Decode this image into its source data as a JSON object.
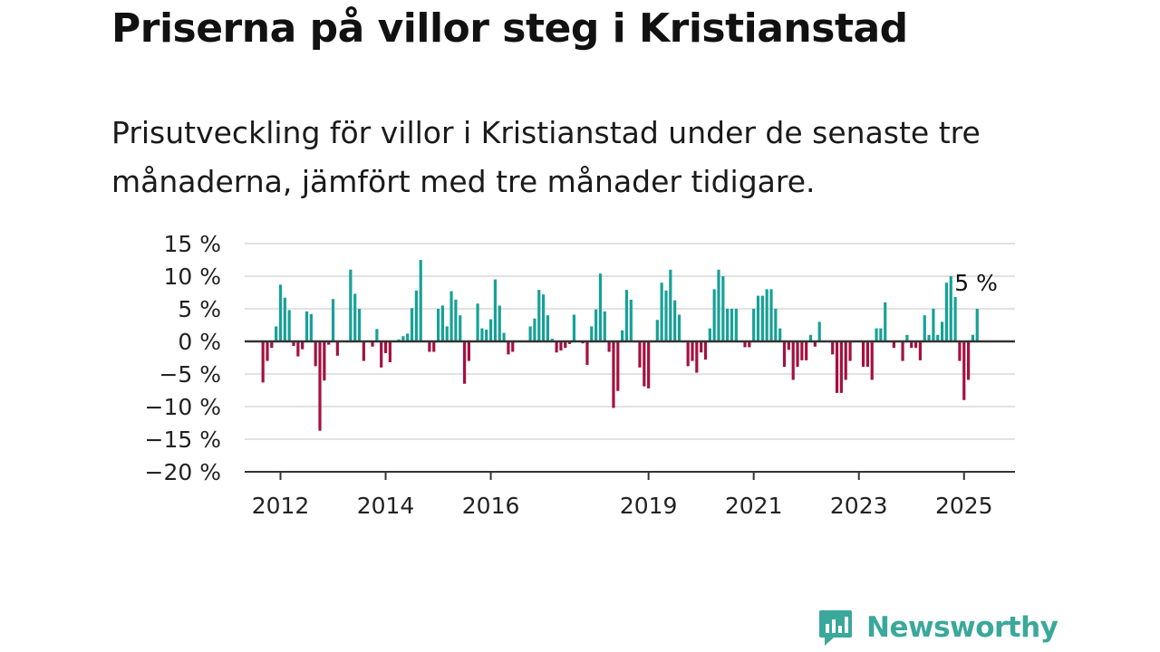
{
  "title": "Priserna på villor steg i Kristianstad",
  "subtitle": "Prisutveckling för villor i Kristianstad under de senaste tre månaderna, jämfört med tre månader tidigare.",
  "brand": {
    "name": "Newsworthy",
    "icon": "newsworthy-logo-icon"
  },
  "colors": {
    "positive": "#17a197",
    "negative": "#a4113f",
    "axis": "#333333",
    "grid": "#d9d9d9",
    "brand": "#3aa89a"
  },
  "chart_data": {
    "type": "bar",
    "x_start": "2011-09",
    "interval": "month",
    "ylim": [
      -20,
      15
    ],
    "yticks": [
      15,
      10,
      5,
      0,
      -5,
      -10,
      -15,
      -20
    ],
    "ytick_labels": [
      "15 %",
      "10 %",
      "5 %",
      "0 %",
      "−5 %",
      "−10 %",
      "−15 %",
      "−20 %"
    ],
    "xticks": [
      2012,
      2014,
      2016,
      2019,
      2021,
      2023,
      2025
    ],
    "xtick_labels": [
      "2012",
      "2014",
      "2016",
      "2019",
      "2021",
      "2023",
      "2025"
    ],
    "grid": true,
    "annotation": {
      "text": "5 %",
      "value": 5
    },
    "values": [
      -6.3,
      -3.0,
      -1.0,
      2.3,
      8.7,
      6.7,
      4.8,
      -0.7,
      -2.3,
      -1.2,
      4.6,
      4.2,
      -3.8,
      -13.7,
      -6.0,
      -0.5,
      6.5,
      -2.2,
      0,
      0,
      11.0,
      7.3,
      5.0,
      -3.0,
      0,
      -0.8,
      1.9,
      -4.0,
      -1.8,
      -3.2,
      0,
      0.3,
      0.8,
      1.2,
      5.1,
      7.8,
      12.5,
      0,
      -1.6,
      -1.6,
      5.0,
      5.5,
      2.3,
      7.7,
      6.4,
      4.0,
      -6.5,
      -3.0,
      0,
      5.8,
      2.0,
      1.8,
      3.4,
      9.5,
      5.5,
      1.3,
      -2.0,
      -1.6,
      0,
      0,
      0,
      2.3,
      3.5,
      7.9,
      7.2,
      4.0,
      0.4,
      -1.7,
      -1.4,
      -1.0,
      -0.4,
      4.1,
      0,
      -0.3,
      -3.6,
      2.3,
      4.9,
      10.4,
      4.6,
      -1.6,
      -10.2,
      -7.6,
      1.7,
      7.9,
      6.4,
      0,
      -4.0,
      -6.9,
      -7.2,
      0,
      3.3,
      9.0,
      7.8,
      11.0,
      6.3,
      4.1,
      0,
      -3.8,
      -3.0,
      -4.8,
      -1.7,
      -2.8,
      2.0,
      8.0,
      11.0,
      10.0,
      5.0,
      5.0,
      5.0,
      0,
      -0.9,
      -0.9,
      5.0,
      7.0,
      7.0,
      8.0,
      8.0,
      5.0,
      2.0,
      -3.9,
      -1.3,
      -5.9,
      -3.9,
      -2.9,
      -2.9,
      1.0,
      -0.8,
      3.0,
      0,
      0,
      -2.0,
      -7.9,
      -7.9,
      -5.9,
      -3.0,
      0,
      0,
      -3.9,
      -3.9,
      -5.9,
      2.0,
      2.0,
      6.0,
      0,
      -1.0,
      0,
      -3.0,
      1.0,
      -1.0,
      -1.0,
      -2.9,
      4.0,
      1.0,
      5.0,
      1.0,
      3.0,
      9.0,
      10.0,
      6.8,
      -3.0,
      -9.0,
      -5.9,
      1.0,
      5.0
    ]
  }
}
